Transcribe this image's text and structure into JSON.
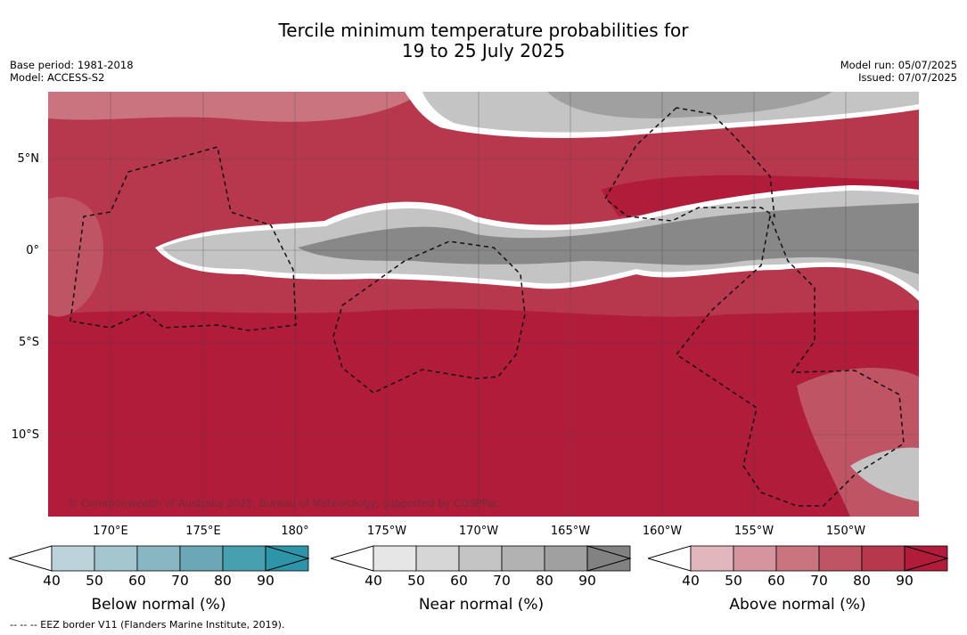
{
  "title": {
    "line1": "Tercile minimum temperature probabilities for",
    "line2": "19 to 25 July 2025"
  },
  "meta": {
    "base_period": "Base period: 1981-2018",
    "model": "Model: ACCESS-S2",
    "model_run": "Model run: 05/07/2025",
    "issued": "Issued: 07/07/2025"
  },
  "map": {
    "lat_labels": [
      "5°N",
      "0°",
      "5°S",
      "10°S"
    ],
    "lon_labels": [
      "170°E",
      "175°E",
      "180°",
      "175°W",
      "170°W",
      "165°W",
      "160°W",
      "155°W",
      "150°W"
    ],
    "copyright": "© Commonwealth of Australia 2025, Bureau of Meteorology, supported by COSPPac",
    "colors": {
      "above_normal_dominant": "#b01c3a",
      "near_normal_core": "#888888",
      "near_normal_light": "#d8d8d8"
    }
  },
  "colorbars": [
    {
      "title": "Below normal (%)",
      "ticks": [
        "40",
        "50",
        "60",
        "70",
        "80",
        "90"
      ],
      "colors": [
        "#bcd3db",
        "#a4c6cf",
        "#88b6c3",
        "#6aa8b8",
        "#46a0b0",
        "#2e95a8"
      ]
    },
    {
      "title": "Near normal (%)",
      "ticks": [
        "40",
        "50",
        "60",
        "70",
        "80",
        "90"
      ],
      "colors": [
        "#e6e6e6",
        "#d6d6d6",
        "#c4c4c4",
        "#b2b2b2",
        "#a0a0a0",
        "#828282"
      ]
    },
    {
      "title": "Above normal (%)",
      "ticks": [
        "40",
        "50",
        "60",
        "70",
        "80",
        "90"
      ],
      "colors": [
        "#e2b6bd",
        "#d6959e",
        "#ca7480",
        "#bf5464",
        "#b7384c",
        "#b01c3a"
      ]
    }
  ],
  "eez_note": "--  --  -- EEZ border V11 (Flanders Marine Institute, 2019)."
}
